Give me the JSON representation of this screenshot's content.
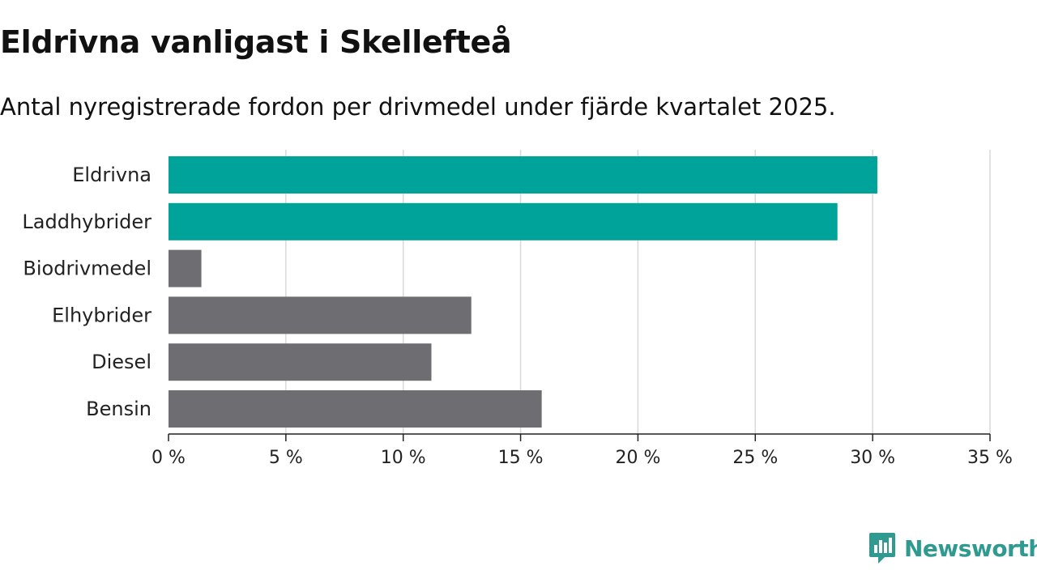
{
  "header": {
    "title": "Eldrivna vanligast i Skellefteå",
    "subtitle": "Antal nyregistrerade fordon per drivmedel under fjärde kvartalet 2025."
  },
  "chart_data": {
    "type": "bar",
    "orientation": "horizontal",
    "title": "Eldrivna vanligast i Skellefteå",
    "subtitle": "Antal nyregistrerade fordon per drivmedel under fjärde kvartalet 2025.",
    "categories": [
      "Eldrivna",
      "Laddhybrider",
      "Biodrivmedel",
      "Elhybrider",
      "Diesel",
      "Bensin"
    ],
    "values": [
      30.2,
      28.5,
      1.4,
      12.9,
      11.2,
      15.9
    ],
    "bar_colors": [
      "#00a39a",
      "#00a39a",
      "#6e6d72",
      "#6e6d72",
      "#6e6d72",
      "#6e6d72"
    ],
    "xlim": [
      0,
      35
    ],
    "xticks": [
      0,
      5,
      10,
      15,
      20,
      25,
      30,
      35
    ],
    "xtick_labels": [
      "0 %",
      "5 %",
      "10 %",
      "15 %",
      "20 %",
      "25 %",
      "30 %",
      "35 %"
    ],
    "xlabel": "",
    "ylabel": "",
    "grid": true,
    "legend": "none"
  },
  "brand": {
    "name": "Newsworthy",
    "color": "#2f9a8f",
    "icon": "newsworthy-logo-icon"
  }
}
